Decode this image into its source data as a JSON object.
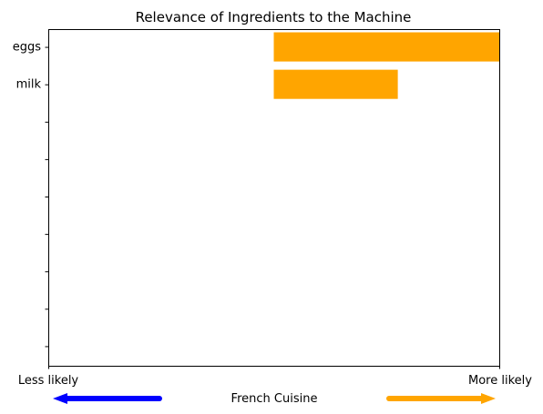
{
  "chart_data": {
    "type": "bar",
    "orientation": "horizontal",
    "title": "Relevance of Ingredients to the Machine",
    "xlabel": "French Cuisine",
    "x_tick_labels": [
      "Less likely",
      "More likely"
    ],
    "xlim": [
      -1,
      1
    ],
    "categories": [
      "eggs",
      "milk"
    ],
    "series": [
      {
        "values": [
          1.0,
          0.55
        ]
      }
    ],
    "y_slot_count": 9,
    "grid": false,
    "legend": "none",
    "arrows": [
      {
        "direction": "left",
        "color": "#0000ff"
      },
      {
        "direction": "right",
        "color": "#ffa500"
      }
    ]
  },
  "colors": {
    "bar": "#ffa500",
    "axis": "#000000",
    "background": "#ffffff"
  }
}
